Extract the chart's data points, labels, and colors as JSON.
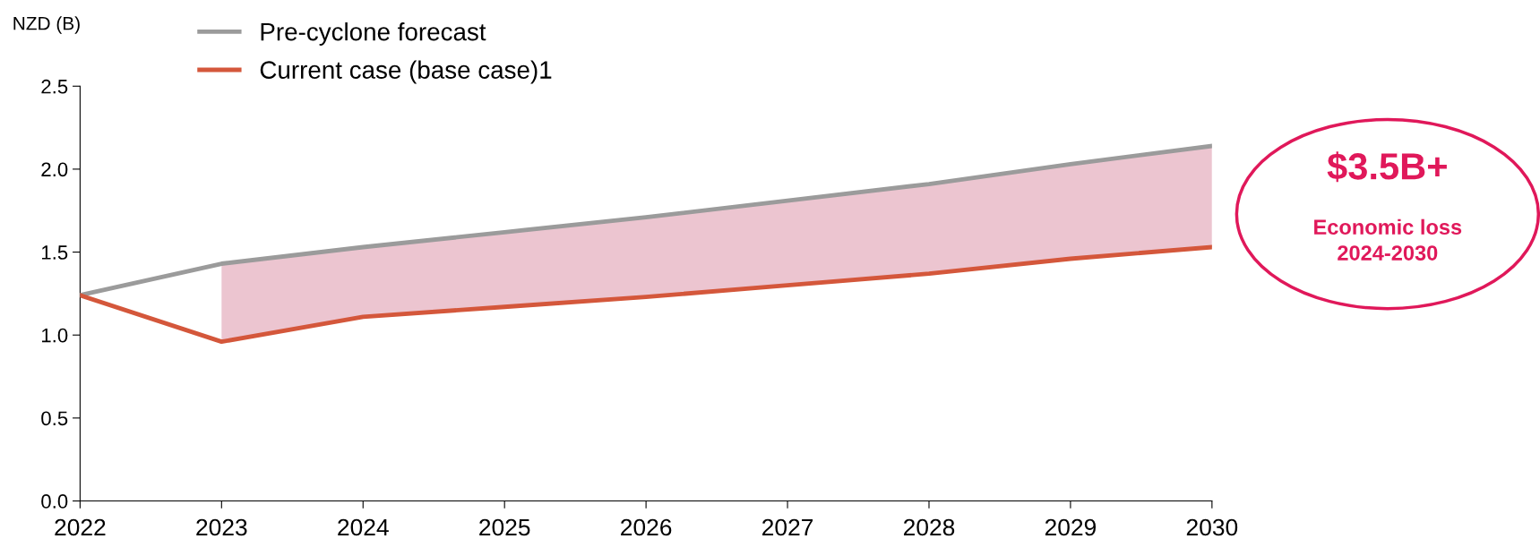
{
  "chart_data": {
    "type": "line",
    "ylabel": "NZD (B)",
    "categories": [
      "2022",
      "2023",
      "2024",
      "2025",
      "2026",
      "2027",
      "2028",
      "2029",
      "2030"
    ],
    "ylim": [
      0,
      2.5
    ],
    "yticks": [
      {
        "value": 0,
        "label": "0.0"
      },
      0.5,
      {
        "value": 1,
        "label": "1.0"
      },
      1.5,
      {
        "value": 2,
        "label": "2.0"
      },
      2.5
    ],
    "series": [
      {
        "name": "Pre-cyclone forecast",
        "color": "#9b9b9b",
        "values": [
          1.24,
          1.43,
          1.53,
          1.62,
          1.71,
          1.81,
          1.91,
          2.03,
          2.14
        ]
      },
      {
        "name": "Current case (base case)1",
        "color": "#d4573b",
        "values": [
          1.24,
          0.96,
          1.11,
          1.17,
          1.23,
          1.3,
          1.37,
          1.46,
          1.53
        ],
        "lower": [
          null,
          0.96,
          1.11,
          1.17,
          1.23,
          1.3,
          1.37,
          1.46,
          1.53
        ],
        "upper": [
          null,
          1.43,
          1.53,
          1.62,
          1.71,
          1.81,
          1.91,
          2.03,
          2.14
        ]
      }
    ],
    "annotations": [
      "$3.5B+",
      "Economic loss\n2024-2030"
    ],
    "legend": "top left",
    "grid": false,
    "marker": "none",
    "line_style": "solid"
  }
}
